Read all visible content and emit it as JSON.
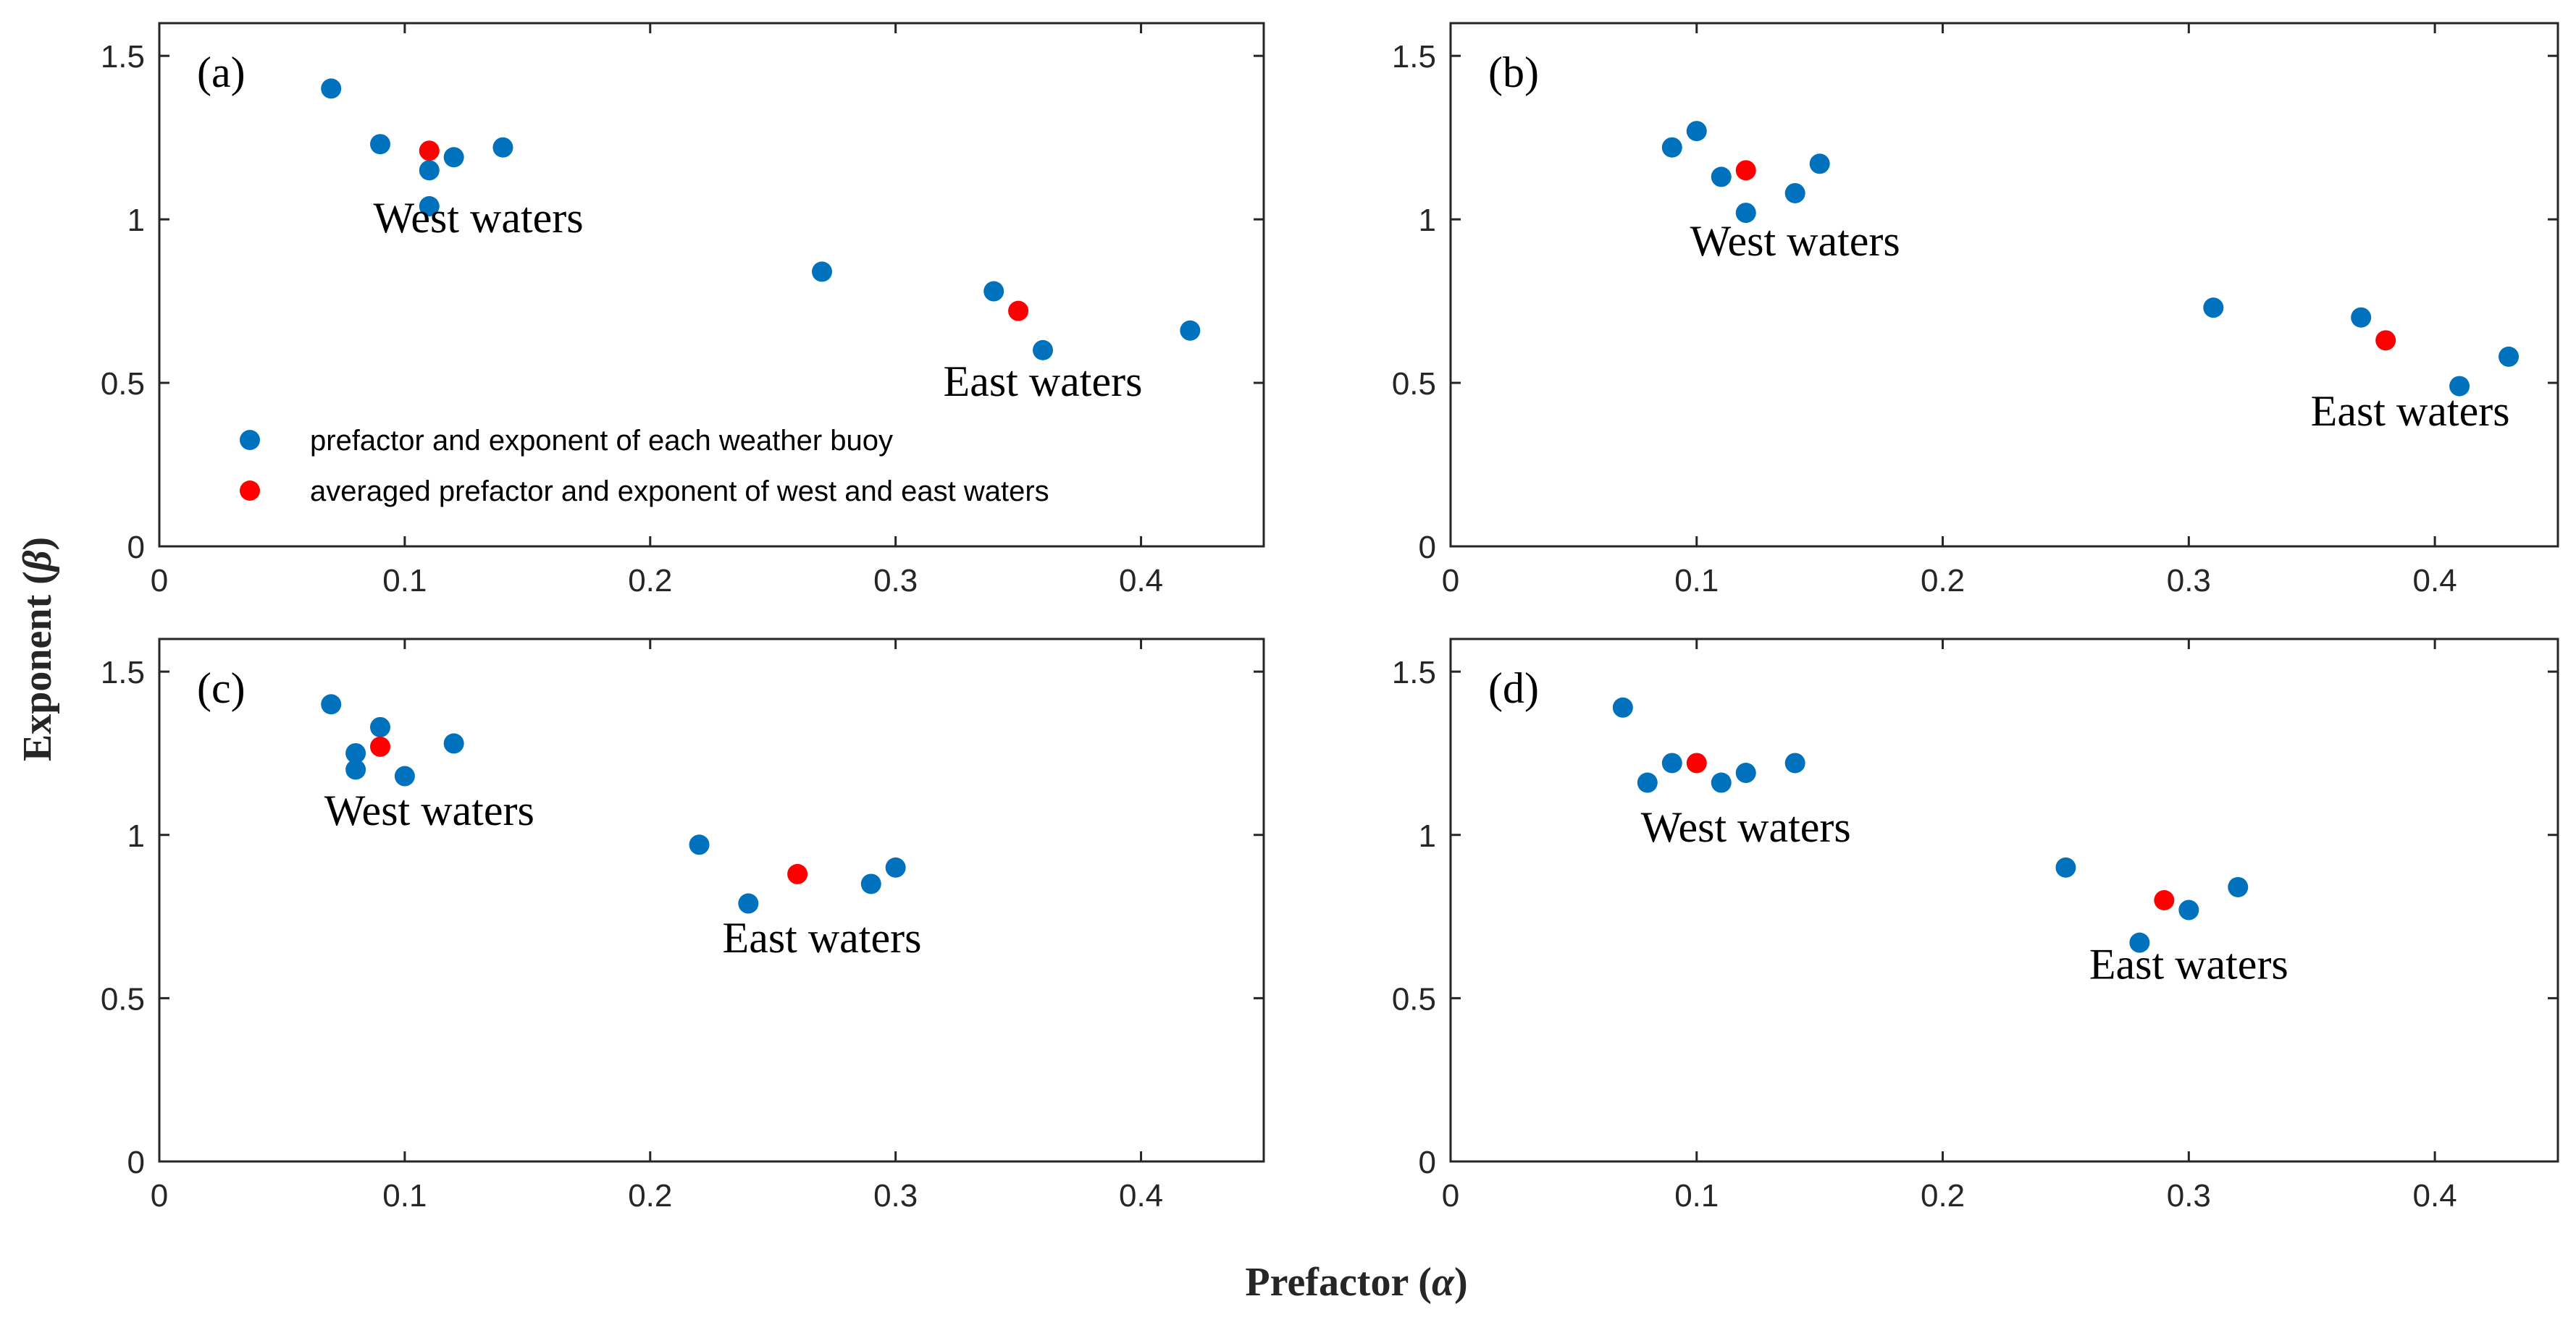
{
  "colors": {
    "station": "#0072BD",
    "average": "#FF0000",
    "axis": "#262626"
  },
  "axes": {
    "x_title": "Prefactor",
    "x_symbol": "α",
    "y_title": "Exponent",
    "y_symbol": "β"
  },
  "legend": {
    "items": [
      {
        "label": "prefactor and exponent of each weather buoy",
        "color": "#0072BD"
      },
      {
        "label": "averaged prefactor and exponent of west and east waters",
        "color": "#FF0000"
      }
    ]
  },
  "chart_data": [
    {
      "type": "scatter",
      "panel": "(a)",
      "xlim": [
        0,
        0.45
      ],
      "ylim": [
        0,
        1.6
      ],
      "xticks": [
        "0",
        "0.1",
        "0.2",
        "0.3",
        "0.4"
      ],
      "yticks": [
        "0",
        "0.5",
        "1",
        "1.5"
      ],
      "stations": [
        [
          0.07,
          1.4
        ],
        [
          0.09,
          1.23
        ],
        [
          0.11,
          1.15
        ],
        [
          0.11,
          1.04
        ],
        [
          0.12,
          1.19
        ],
        [
          0.14,
          1.22
        ],
        [
          0.27,
          0.84
        ],
        [
          0.34,
          0.78
        ],
        [
          0.36,
          0.6
        ],
        [
          0.42,
          0.66
        ]
      ],
      "averages": [
        [
          0.11,
          1.21
        ],
        [
          0.35,
          0.72
        ]
      ],
      "annotations": [
        {
          "text": "West waters",
          "x": 0.13,
          "y": 0.96
        },
        {
          "text": "East waters",
          "x": 0.36,
          "y": 0.46
        }
      ]
    },
    {
      "type": "scatter",
      "panel": "(b)",
      "xlim": [
        0,
        0.45
      ],
      "ylim": [
        0,
        1.6
      ],
      "xticks": [
        "0",
        "0.1",
        "0.2",
        "0.3",
        "0.4"
      ],
      "yticks": [
        "0",
        "0.5",
        "1",
        "1.5"
      ],
      "stations": [
        [
          0.09,
          1.22
        ],
        [
          0.1,
          1.27
        ],
        [
          0.11,
          1.13
        ],
        [
          0.12,
          1.02
        ],
        [
          0.14,
          1.08
        ],
        [
          0.15,
          1.17
        ],
        [
          0.31,
          0.73
        ],
        [
          0.37,
          0.7
        ],
        [
          0.41,
          0.49
        ],
        [
          0.43,
          0.58
        ]
      ],
      "averages": [
        [
          0.12,
          1.15
        ],
        [
          0.38,
          0.63
        ]
      ],
      "annotations": [
        {
          "text": "West waters",
          "x": 0.14,
          "y": 0.89
        },
        {
          "text": "East waters",
          "x": 0.39,
          "y": 0.37
        }
      ]
    },
    {
      "type": "scatter",
      "panel": "(c)",
      "xlim": [
        0,
        0.45
      ],
      "ylim": [
        0,
        1.6
      ],
      "xticks": [
        "0",
        "0.1",
        "0.2",
        "0.3",
        "0.4"
      ],
      "yticks": [
        "0",
        "0.5",
        "1",
        "1.5"
      ],
      "stations": [
        [
          0.07,
          1.4
        ],
        [
          0.08,
          1.25
        ],
        [
          0.08,
          1.2
        ],
        [
          0.09,
          1.33
        ],
        [
          0.1,
          1.18
        ],
        [
          0.12,
          1.28
        ],
        [
          0.22,
          0.97
        ],
        [
          0.24,
          0.79
        ],
        [
          0.29,
          0.85
        ],
        [
          0.3,
          0.9
        ]
      ],
      "averages": [
        [
          0.09,
          1.27
        ],
        [
          0.26,
          0.88
        ]
      ],
      "annotations": [
        {
          "text": "West waters",
          "x": 0.11,
          "y": 1.03
        },
        {
          "text": "East waters",
          "x": 0.27,
          "y": 0.64
        }
      ]
    },
    {
      "type": "scatter",
      "panel": "(d)",
      "xlim": [
        0,
        0.45
      ],
      "ylim": [
        0,
        1.6
      ],
      "xticks": [
        "0",
        "0.1",
        "0.2",
        "0.3",
        "0.4"
      ],
      "yticks": [
        "0",
        "0.5",
        "1",
        "1.5"
      ],
      "stations": [
        [
          0.07,
          1.39
        ],
        [
          0.08,
          1.16
        ],
        [
          0.09,
          1.22
        ],
        [
          0.11,
          1.16
        ],
        [
          0.12,
          1.19
        ],
        [
          0.14,
          1.22
        ],
        [
          0.25,
          0.9
        ],
        [
          0.28,
          0.67
        ],
        [
          0.3,
          0.77
        ],
        [
          0.32,
          0.84
        ]
      ],
      "averages": [
        [
          0.1,
          1.22
        ],
        [
          0.29,
          0.8
        ]
      ],
      "annotations": [
        {
          "text": "West waters",
          "x": 0.12,
          "y": 0.98
        },
        {
          "text": "East waters",
          "x": 0.3,
          "y": 0.56
        }
      ]
    }
  ]
}
